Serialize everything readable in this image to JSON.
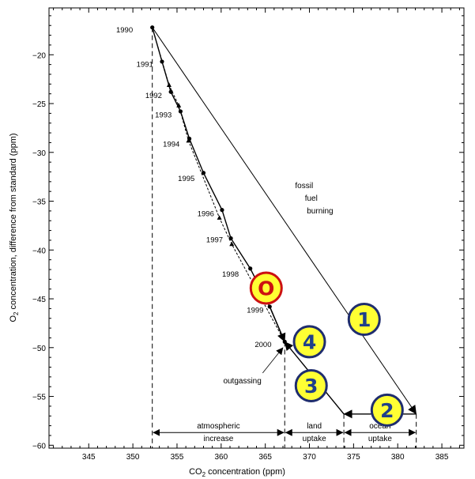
{
  "chart_data": {
    "type": "line",
    "xlabel_main": "CO",
    "xlabel_sub": "2",
    "xlabel_rest": " concentration (ppm)",
    "ylabel_main": "O",
    "ylabel_sub": "2",
    "ylabel_rest": " concentration, difference from standard (ppm)",
    "xlim": [
      340.5,
      387.5
    ],
    "ylim": [
      -60.3,
      -15.2
    ],
    "x_ticks": [
      345,
      350,
      355,
      360,
      365,
      370,
      375,
      380,
      385
    ],
    "y_ticks": [
      -20,
      -25,
      -30,
      -35,
      -40,
      -45,
      -50,
      -55,
      -60
    ],
    "grid": false,
    "series": [
      {
        "marker": "circle",
        "line": "solid",
        "points": [
          {
            "x": 352.2,
            "y": -17.2
          },
          {
            "x": 353.3,
            "y": -20.7
          },
          {
            "x": 354.3,
            "y": -23.8
          },
          {
            "x": 355.4,
            "y": -25.8
          },
          {
            "x": 356.4,
            "y": -28.6
          },
          {
            "x": 358.0,
            "y": -32.1
          },
          {
            "x": 360.1,
            "y": -35.9
          },
          {
            "x": 361.1,
            "y": -38.8
          },
          {
            "x": 363.3,
            "y": -41.9
          },
          {
            "x": 365.5,
            "y": -45.8
          },
          {
            "x": 367.2,
            "y": -49.4
          }
        ]
      },
      {
        "marker": "triangle",
        "line": "dashed",
        "points": [
          {
            "x": 352.2,
            "y": -17.2
          },
          {
            "x": 354.1,
            "y": -23.1
          },
          {
            "x": 355.2,
            "y": -25.2
          },
          {
            "x": 356.3,
            "y": -28.8
          },
          {
            "x": 359.8,
            "y": -36.7
          },
          {
            "x": 361.2,
            "y": -39.4
          },
          {
            "x": 367.2,
            "y": -49.4
          }
        ]
      }
    ],
    "year_labels": [
      {
        "text": "1990",
        "x": 350.0,
        "y": -17.4
      },
      {
        "text": "1991",
        "x": 352.3,
        "y": -20.9
      },
      {
        "text": "1992",
        "x": 353.3,
        "y": -24.1
      },
      {
        "text": "1993",
        "x": 354.4,
        "y": -26.1
      },
      {
        "text": "1994",
        "x": 355.3,
        "y": -29.1
      },
      {
        "text": "1995",
        "x": 357.0,
        "y": -32.6
      },
      {
        "text": "1996",
        "x": 359.2,
        "y": -36.2
      },
      {
        "text": "1997",
        "x": 360.2,
        "y": -38.9
      },
      {
        "text": "1998",
        "x": 362.0,
        "y": -42.4
      },
      {
        "text": "1999",
        "x": 364.8,
        "y": -46.1
      },
      {
        "text": "2000",
        "x": 365.7,
        "y": -49.6
      }
    ],
    "fossil_fuel_line": {
      "from": [
        352.2,
        -17.2
      ],
      "to": [
        382.1,
        -56.8
      ]
    },
    "ocean_uptake_arrow": {
      "from": [
        382.1,
        -56.8
      ],
      "to": [
        373.9,
        -56.8
      ]
    },
    "land_uptake_arrow": {
      "from": [
        373.9,
        -56.8
      ],
      "to": [
        367.2,
        -49.4
      ]
    },
    "final_arrow": {
      "from": [
        365.5,
        -45.8
      ],
      "to": [
        367.2,
        -49.4
      ]
    },
    "outgassing_arrow": {
      "from": [
        364.7,
        -52.6
      ],
      "to": [
        367.0,
        -50.0
      ]
    },
    "dashed_verticals": [
      {
        "x": 352.2,
        "from": -17.2,
        "to": -60.3
      },
      {
        "x": 367.2,
        "from": -49.4,
        "to": -60.3
      },
      {
        "x": 373.9,
        "from": -56.8,
        "to": -60.3
      },
      {
        "x": 382.1,
        "from": -56.8,
        "to": -60.3
      }
    ],
    "bottom_arrows": [
      {
        "from": 352.2,
        "to": 367.2,
        "y": -58.7,
        "label1": "atmospheric",
        "label2": "increase"
      },
      {
        "from": 367.2,
        "to": 373.9,
        "y": -58.7,
        "label1": "land",
        "label2": "uptake"
      },
      {
        "from": 373.9,
        "to": 382.1,
        "y": -58.7,
        "label1": "ocean",
        "label2": "uptake"
      }
    ],
    "annotations": [
      {
        "text": "fossil",
        "x": 369.4,
        "y": -33.4
      },
      {
        "text": "fuel",
        "x": 370.2,
        "y": -34.7
      },
      {
        "text": "burning",
        "x": 371.2,
        "y": -36.0
      },
      {
        "text": "outgassing",
        "x": 362.4,
        "y": -53.4
      }
    ],
    "badges": [
      {
        "text": "O",
        "x": 365.1,
        "y": -43.9,
        "fill": "#ffff33",
        "ring": "#cc1111",
        "text_color": "#cc1111"
      },
      {
        "text": "1",
        "x": 376.2,
        "y": -47.1,
        "fill": "#ffff33",
        "ring": "#1f2d6e",
        "text_color": "#1f3f8a"
      },
      {
        "text": "4",
        "x": 370.0,
        "y": -49.4,
        "fill": "#ffff33",
        "ring": "#1f2d6e",
        "text_color": "#1f3f8a"
      },
      {
        "text": "3",
        "x": 370.2,
        "y": -53.9,
        "fill": "#ffff33",
        "ring": "#1f2d6e",
        "text_color": "#1f3f8a"
      },
      {
        "text": "2",
        "x": 378.8,
        "y": -56.4,
        "fill": "#ffff33",
        "ring": "#1f2d6e",
        "text_color": "#1f3f8a"
      }
    ]
  }
}
